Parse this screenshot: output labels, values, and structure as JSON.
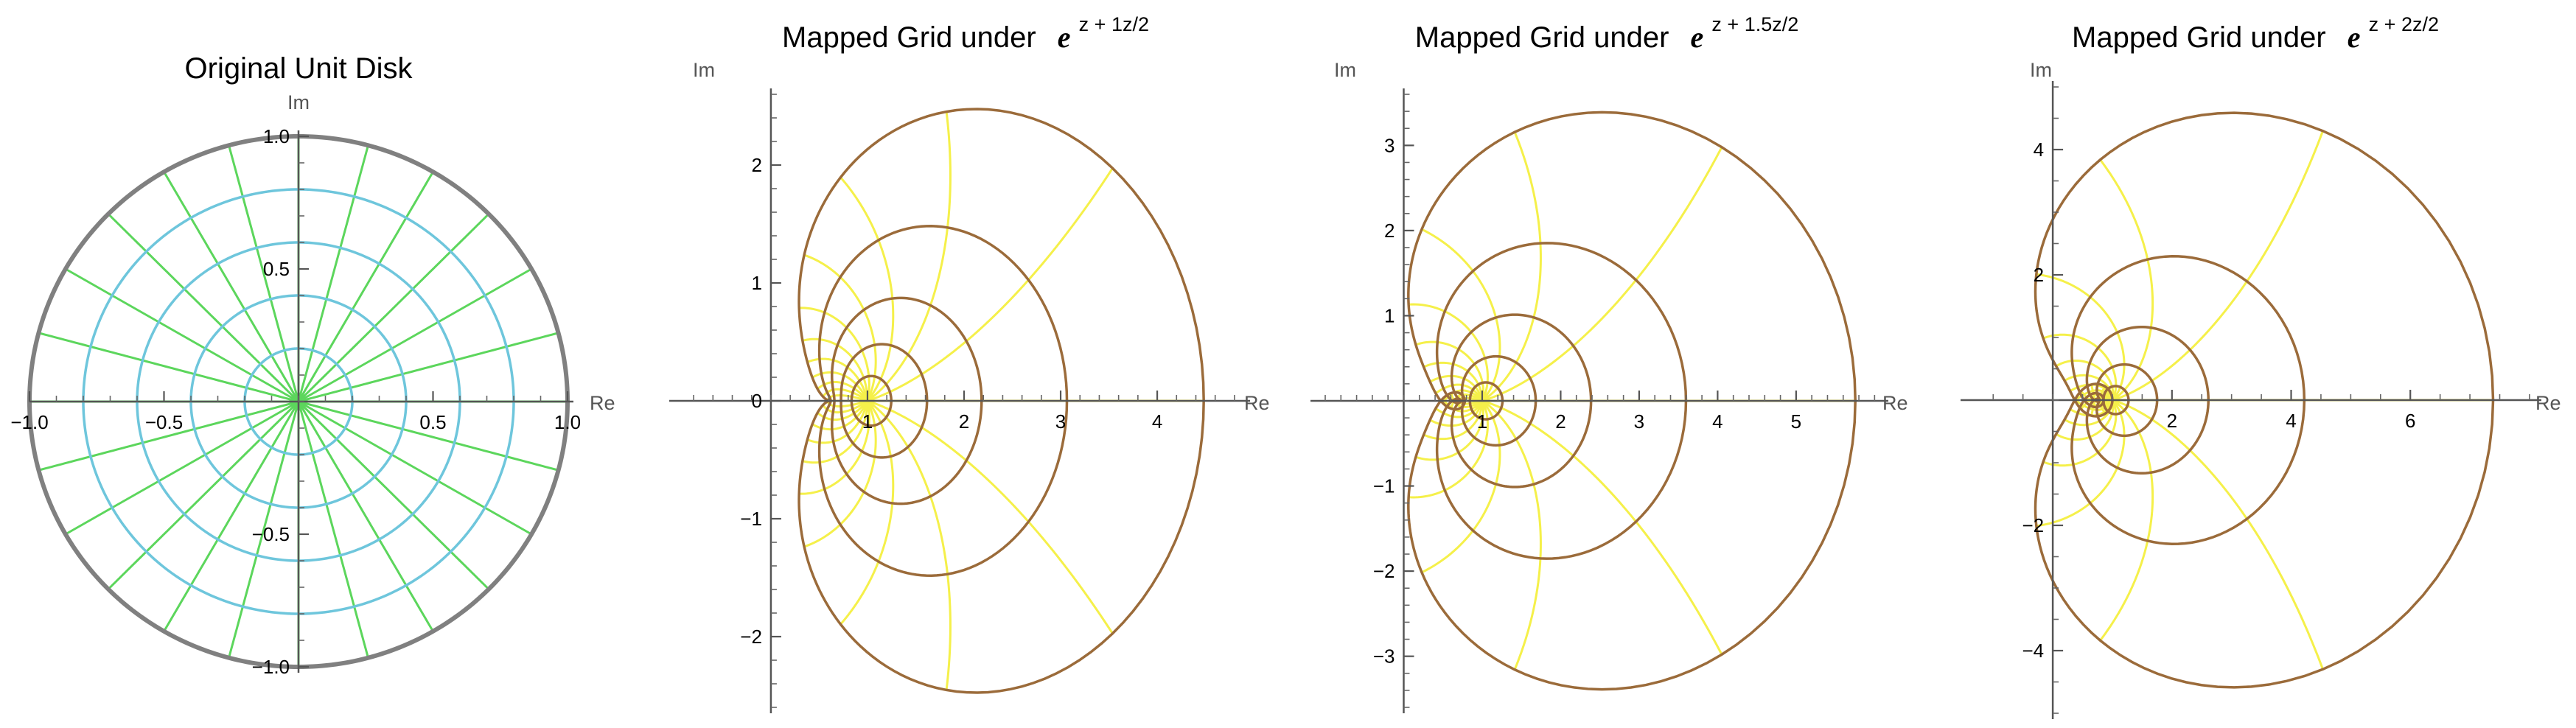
{
  "chart_data": [
    {
      "type": "line",
      "title": "Original Unit Disk",
      "xlabel": "Re",
      "ylabel": "Im",
      "xlim": [
        -1.0,
        1.0
      ],
      "ylim": [
        -1.0,
        1.0
      ],
      "xticks": [
        -1.0,
        -0.5,
        0.5,
        1.0
      ],
      "yticks": [
        -1.0,
        -0.5,
        0.5,
        1.0
      ],
      "xtick_labels": [
        "−1.0",
        "−0.5",
        "0.5",
        "1.0"
      ],
      "ytick_labels": [
        "−1.0",
        "−0.5",
        "0.5",
        "1.0"
      ],
      "circle_radii": [
        0.2,
        0.4,
        0.6,
        0.8
      ],
      "boundary_radius": 1.0,
      "radial_lines": 24,
      "colors": {
        "circles": "#6ec6dc",
        "rays": "#5cd65c",
        "boundary": "#808080"
      }
    },
    {
      "type": "line",
      "title": "Mapped Grid under",
      "title_expr": "e",
      "title_sup": "z + 1z/2",
      "map": "w = exp(z + a z^2 / 2)",
      "a": 1,
      "xlabel": "Re",
      "ylabel": "Im",
      "xlim": [
        -0.9,
        4.9
      ],
      "ylim": [
        -2.6,
        2.6
      ],
      "xticks": [
        1,
        2,
        3,
        4
      ],
      "yticks": [
        -2,
        -1,
        0,
        1,
        2
      ],
      "xtick_labels": [
        "1",
        "2",
        "3",
        "4"
      ],
      "ytick_labels": [
        "−2",
        "−1",
        "0",
        "1",
        "2"
      ],
      "circle_radii": [
        0.2,
        0.4,
        0.6,
        0.8,
        1.0
      ],
      "radial_lines": 24,
      "colors": {
        "circles": "#9b6b3a",
        "rays": "#f5f04a"
      }
    },
    {
      "type": "line",
      "title": "Mapped Grid under",
      "title_expr": "e",
      "title_sup": "z + 1.5z/2",
      "map": "w = exp(z + a z^2 / 2)",
      "a": 1.5,
      "xlabel": "Re",
      "ylabel": "Im",
      "xlim": [
        -1.0,
        6.1
      ],
      "ylim": [
        -3.6,
        3.6
      ],
      "xticks": [
        1,
        2,
        3,
        4,
        5
      ],
      "yticks": [
        -3,
        -2,
        -1,
        1,
        2,
        3
      ],
      "xtick_labels": [
        "1",
        "2",
        "3",
        "4",
        "5"
      ],
      "ytick_labels": [
        "−3",
        "−2",
        "−1",
        "1",
        "2",
        "3"
      ],
      "circle_radii": [
        0.2,
        0.4,
        0.6,
        0.8,
        1.0
      ],
      "radial_lines": 24,
      "colors": {
        "circles": "#9b6b3a",
        "rays": "#f5f04a"
      }
    },
    {
      "type": "line",
      "title": "Mapped Grid under",
      "title_expr": "e",
      "title_sup": "z + 2z/2",
      "map": "w = exp(z + a z^2 / 2)",
      "a": 2,
      "xlabel": "Re",
      "ylabel": "Im",
      "xlim": [
        -1.3,
        8.1
      ],
      "ylim": [
        -5.0,
        5.0
      ],
      "xticks": [
        2,
        4,
        6
      ],
      "yticks": [
        -4,
        -2,
        2,
        4
      ],
      "xtick_labels": [
        "2",
        "4",
        "6"
      ],
      "ytick_labels": [
        "−4",
        "−2",
        "2",
        "4"
      ],
      "circle_radii": [
        0.2,
        0.4,
        0.6,
        0.8,
        1.0
      ],
      "radial_lines": 24,
      "colors": {
        "circles": "#9b6b3a",
        "rays": "#f5f04a"
      }
    }
  ]
}
